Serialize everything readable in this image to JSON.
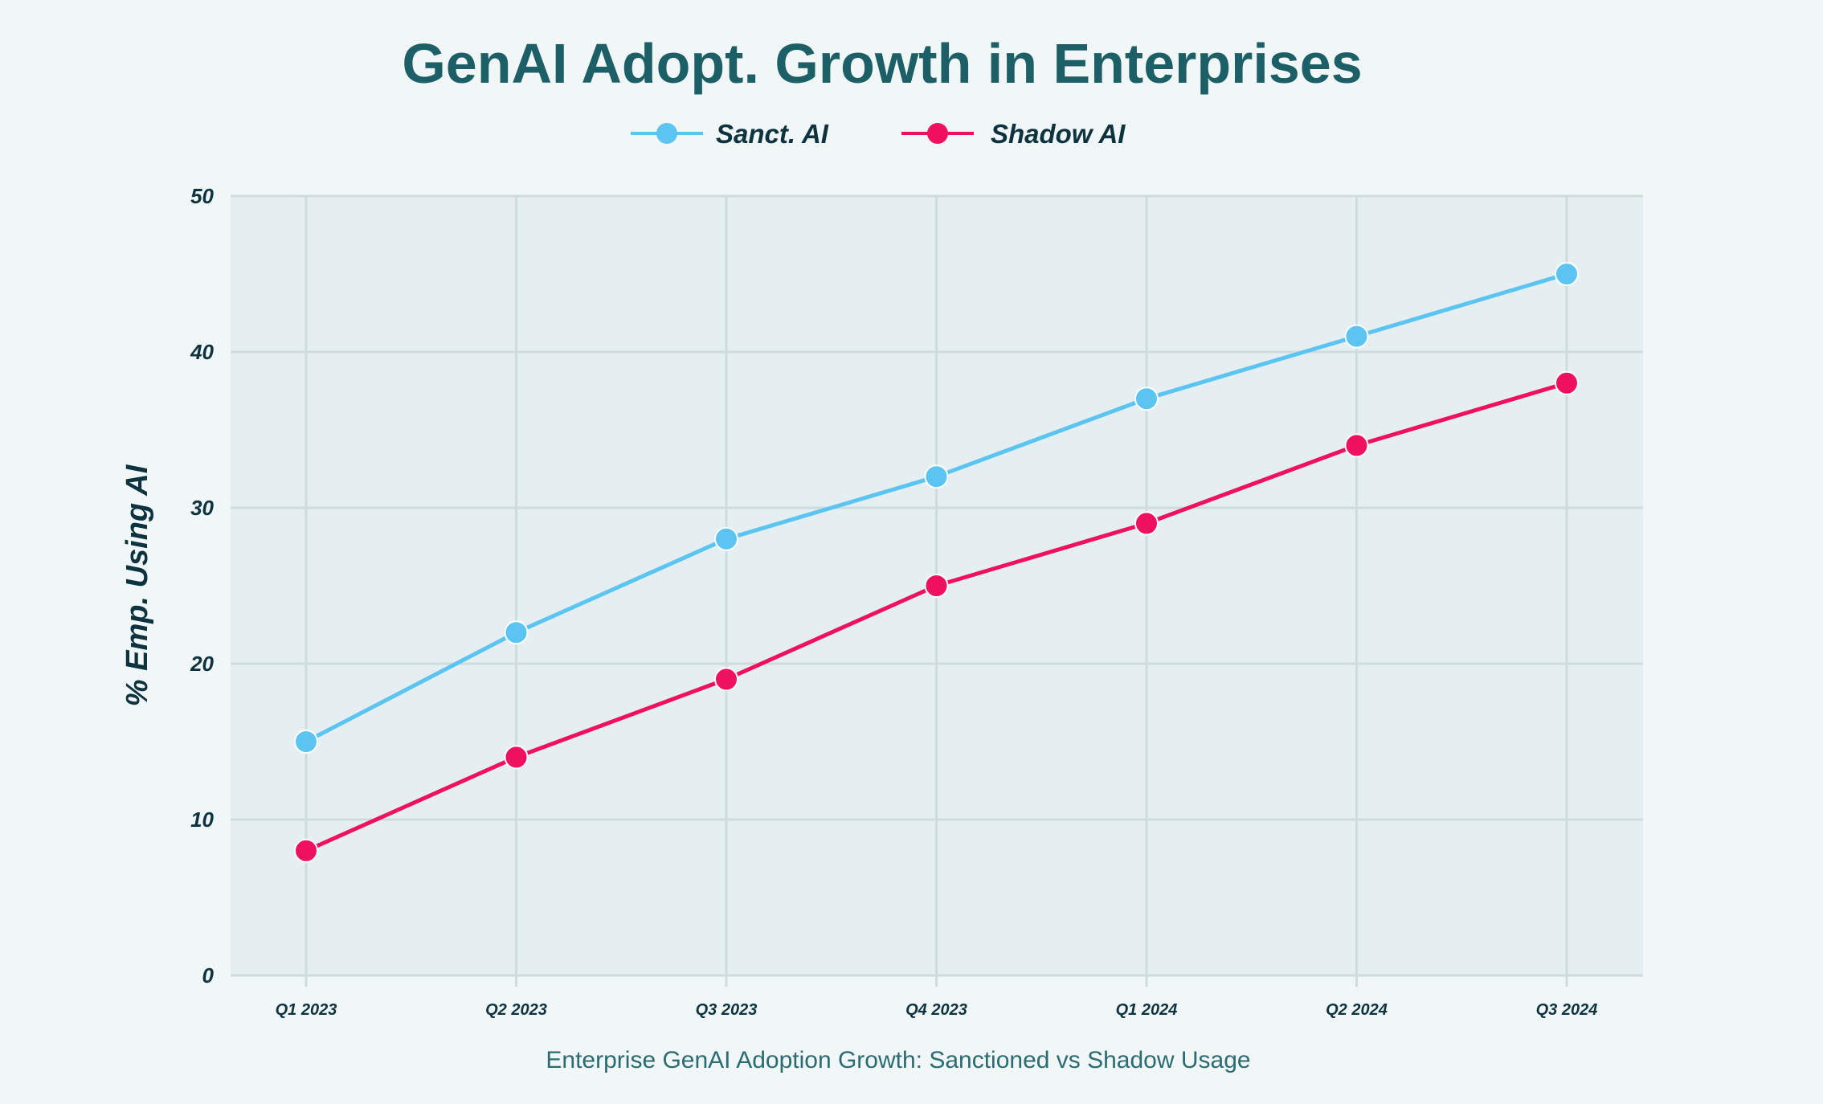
{
  "chart_data": {
    "type": "line",
    "title": "GenAI Adopt. Growth in Enterprises",
    "caption": "Enterprise GenAI Adoption Growth: Sanctioned vs Shadow Usage",
    "xlabel": "",
    "ylabel": "% Emp. Using AI",
    "categories": [
      "Q1 2023",
      "Q2 2023",
      "Q3 2023",
      "Q4 2023",
      "Q1 2024",
      "Q2 2024",
      "Q3 2024"
    ],
    "ylim": [
      0,
      50
    ],
    "yticks": [
      0,
      10,
      20,
      30,
      40,
      50
    ],
    "grid": true,
    "legend_position": "top-center",
    "series": [
      {
        "name": "Sanct. AI",
        "color": "#5bc4f1",
        "values": [
          15,
          22,
          28,
          32,
          37,
          41,
          45
        ]
      },
      {
        "name": "Shadow AI",
        "color": "#f0115e",
        "values": [
          8,
          14,
          19,
          25,
          29,
          34,
          38
        ]
      }
    ]
  }
}
